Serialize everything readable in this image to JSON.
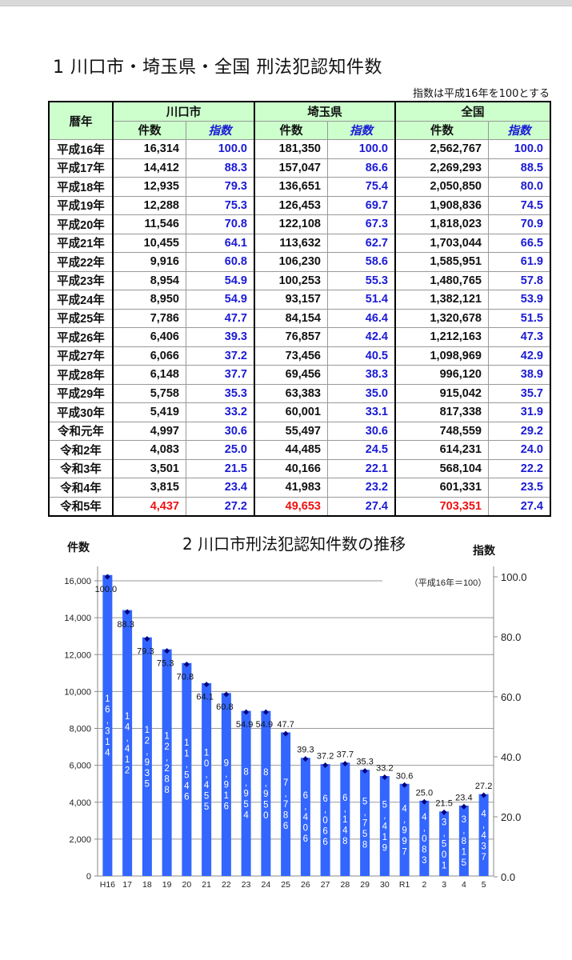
{
  "section1": {
    "title": "1 川口市・埼玉県・全国 刑法犯認知件数",
    "note": "指数は平成16年を100とする",
    "header": {
      "year": "暦年",
      "groups": [
        "川口市",
        "埼玉県",
        "全国"
      ],
      "count": "件数",
      "index": "指数"
    },
    "rows": [
      {
        "year": "平成16年",
        "kc": "16,314",
        "ki": "100.0",
        "sc": "181,350",
        "si": "100.0",
        "nc": "2,562,767",
        "ni": "100.0"
      },
      {
        "year": "平成17年",
        "kc": "14,412",
        "ki": "88.3",
        "sc": "157,047",
        "si": "86.6",
        "nc": "2,269,293",
        "ni": "88.5"
      },
      {
        "year": "平成18年",
        "kc": "12,935",
        "ki": "79.3",
        "sc": "136,651",
        "si": "75.4",
        "nc": "2,050,850",
        "ni": "80.0"
      },
      {
        "year": "平成19年",
        "kc": "12,288",
        "ki": "75.3",
        "sc": "126,453",
        "si": "69.7",
        "nc": "1,908,836",
        "ni": "74.5"
      },
      {
        "year": "平成20年",
        "kc": "11,546",
        "ki": "70.8",
        "sc": "122,108",
        "si": "67.3",
        "nc": "1,818,023",
        "ni": "70.9"
      },
      {
        "year": "平成21年",
        "kc": "10,455",
        "ki": "64.1",
        "sc": "113,632",
        "si": "62.7",
        "nc": "1,703,044",
        "ni": "66.5"
      },
      {
        "year": "平成22年",
        "kc": "9,916",
        "ki": "60.8",
        "sc": "106,230",
        "si": "58.6",
        "nc": "1,585,951",
        "ni": "61.9"
      },
      {
        "year": "平成23年",
        "kc": "8,954",
        "ki": "54.9",
        "sc": "100,253",
        "si": "55.3",
        "nc": "1,480,765",
        "ni": "57.8"
      },
      {
        "year": "平成24年",
        "kc": "8,950",
        "ki": "54.9",
        "sc": "93,157",
        "si": "51.4",
        "nc": "1,382,121",
        "ni": "53.9"
      },
      {
        "year": "平成25年",
        "kc": "7,786",
        "ki": "47.7",
        "sc": "84,154",
        "si": "46.4",
        "nc": "1,320,678",
        "ni": "51.5"
      },
      {
        "year": "平成26年",
        "kc": "6,406",
        "ki": "39.3",
        "sc": "76,857",
        "si": "42.4",
        "nc": "1,212,163",
        "ni": "47.3"
      },
      {
        "year": "平成27年",
        "kc": "6,066",
        "ki": "37.2",
        "sc": "73,456",
        "si": "40.5",
        "nc": "1,098,969",
        "ni": "42.9"
      },
      {
        "year": "平成28年",
        "kc": "6,148",
        "ki": "37.7",
        "sc": "69,456",
        "si": "38.3",
        "nc": "996,120",
        "ni": "38.9"
      },
      {
        "year": "平成29年",
        "kc": "5,758",
        "ki": "35.3",
        "sc": "63,383",
        "si": "35.0",
        "nc": "915,042",
        "ni": "35.7"
      },
      {
        "year": "平成30年",
        "kc": "5,419",
        "ki": "33.2",
        "sc": "60,001",
        "si": "33.1",
        "nc": "817,338",
        "ni": "31.9"
      },
      {
        "year": "令和元年",
        "kc": "4,997",
        "ki": "30.6",
        "sc": "55,497",
        "si": "30.6",
        "nc": "748,559",
        "ni": "29.2"
      },
      {
        "year": "令和2年",
        "kc": "4,083",
        "ki": "25.0",
        "sc": "44,485",
        "si": "24.5",
        "nc": "614,231",
        "ni": "24.0"
      },
      {
        "year": "令和3年",
        "kc": "3,501",
        "ki": "21.5",
        "sc": "40,166",
        "si": "22.1",
        "nc": "568,104",
        "ni": "22.2"
      },
      {
        "year": "令和4年",
        "kc": "3,815",
        "ki": "23.4",
        "sc": "41,983",
        "si": "23.2",
        "nc": "601,331",
        "ni": "23.5"
      },
      {
        "year": "令和5年",
        "kc": "4,437",
        "ki": "27.2",
        "sc": "49,653",
        "si": "27.4",
        "nc": "703,351",
        "ni": "27.4",
        "highlight": true
      }
    ]
  },
  "chart_data": {
    "type": "bar",
    "title": "2 川口市刑法犯認知件数の推移",
    "ylabel": "件数",
    "y2label": "指数",
    "annotation": "（平成16年＝100）",
    "categories": [
      "H16",
      "17",
      "18",
      "19",
      "20",
      "21",
      "22",
      "23",
      "24",
      "25",
      "26",
      "27",
      "28",
      "29",
      "30",
      "R1",
      "2",
      "3",
      "4",
      "5"
    ],
    "ylim": [
      0,
      16000
    ],
    "yticks": [
      "0",
      "2,000",
      "4,000",
      "6,000",
      "8,000",
      "10,000",
      "12,000",
      "14,000",
      "16,000"
    ],
    "y2lim": [
      0,
      100
    ],
    "y2ticks": [
      "0.0",
      "20.0",
      "40.0",
      "60.0",
      "80.0",
      "100.0"
    ],
    "grid": true,
    "series": [
      {
        "name": "件数",
        "kind": "bar",
        "color": "#3366ff",
        "values": [
          16314,
          14412,
          12935,
          12288,
          11546,
          10455,
          9916,
          8954,
          8950,
          7786,
          6406,
          6066,
          6148,
          5758,
          5419,
          4997,
          4083,
          3501,
          3815,
          4437
        ],
        "labels": [
          "16,314",
          "14,412",
          "12,935",
          "12,288",
          "11,546",
          "10,455",
          "9,916",
          "8,954",
          "8,950",
          "7,786",
          "6,406",
          "6,066",
          "6,148",
          "5,758",
          "5,419",
          "4,997",
          "4,083",
          "3,501",
          "3,815",
          "4,437"
        ]
      },
      {
        "name": "指数",
        "kind": "marker",
        "color": "#000080",
        "values": [
          100.0,
          88.3,
          79.3,
          75.3,
          70.8,
          64.1,
          60.8,
          54.9,
          54.9,
          47.7,
          39.3,
          37.2,
          37.7,
          35.3,
          33.2,
          30.6,
          25.0,
          21.5,
          23.4,
          27.2
        ],
        "labels": [
          "100.0",
          "88.3",
          "79.3",
          "75.3",
          "70.8",
          "64.1",
          "60.8",
          "54.9",
          "54.9",
          "47.7",
          "39.3",
          "37.2",
          "37.7",
          "35.3",
          "33.2",
          "30.6",
          "25.0",
          "21.5",
          "23.4",
          "27.2"
        ]
      }
    ]
  }
}
